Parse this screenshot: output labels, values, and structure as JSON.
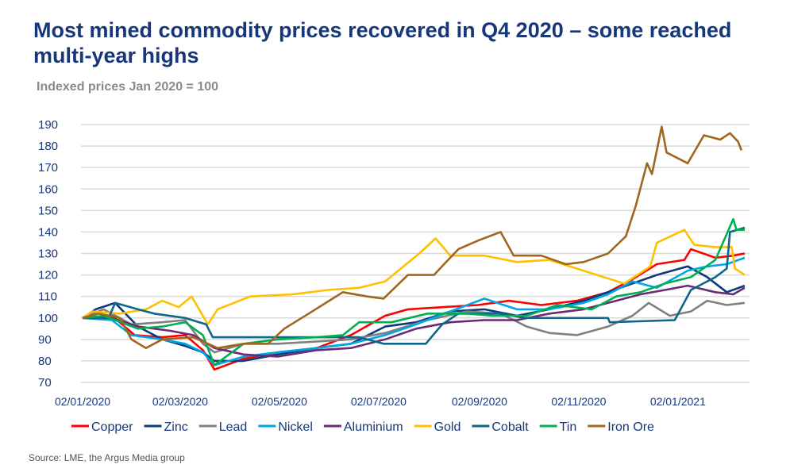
{
  "title": "Most mined commodity prices recovered in Q4 2020 – some reached multi-year highs",
  "subtitle": "Indexed prices Jan 2020 = 100",
  "source": "Source: LME, the Argus Media group",
  "chart_data": {
    "type": "line",
    "title": "Most mined commodity prices recovered in Q4 2020 – some reached multi-year highs",
    "ylabel": "Indexed prices Jan 2020 = 100",
    "ylim": [
      70,
      190
    ],
    "yticks": [
      70,
      80,
      90,
      100,
      110,
      120,
      130,
      140,
      150,
      160,
      170,
      180,
      190
    ],
    "xlim": [
      "2020-01-02",
      "2021-02-15"
    ],
    "xticks": [
      {
        "date": "2020-01-02",
        "label": "02/01/2020"
      },
      {
        "date": "2020-03-02",
        "label": "02/03/2020"
      },
      {
        "date": "2020-05-02",
        "label": "02/05/2020"
      },
      {
        "date": "2020-07-02",
        "label": "02/07/2020"
      },
      {
        "date": "2020-09-02",
        "label": "02/09/2020"
      },
      {
        "date": "2020-11-02",
        "label": "02/11/2020"
      },
      {
        "date": "2021-01-02",
        "label": "02/01/2021"
      }
    ],
    "grid": true,
    "legend": "bottom",
    "series": [
      {
        "name": "Copper",
        "color": "#ff0000",
        "points": [
          [
            "2020-01-02",
            100
          ],
          [
            "2020-01-20",
            101
          ],
          [
            "2020-02-03",
            92
          ],
          [
            "2020-02-20",
            91
          ],
          [
            "2020-03-05",
            92
          ],
          [
            "2020-03-16",
            85
          ],
          [
            "2020-03-23",
            76
          ],
          [
            "2020-04-10",
            81
          ],
          [
            "2020-05-01",
            84
          ],
          [
            "2020-05-25",
            86
          ],
          [
            "2020-06-15",
            92
          ],
          [
            "2020-07-06",
            101
          ],
          [
            "2020-07-20",
            104
          ],
          [
            "2020-08-10",
            105
          ],
          [
            "2020-09-01",
            106
          ],
          [
            "2020-09-20",
            108
          ],
          [
            "2020-10-10",
            106
          ],
          [
            "2020-11-01",
            108
          ],
          [
            "2020-11-20",
            112
          ],
          [
            "2020-12-05",
            118
          ],
          [
            "2020-12-20",
            125
          ],
          [
            "2021-01-06",
            127
          ],
          [
            "2021-01-10",
            132
          ],
          [
            "2021-01-25",
            128
          ],
          [
            "2021-02-05",
            129
          ],
          [
            "2021-02-12",
            130
          ]
        ]
      },
      {
        "name": "Zinc",
        "color": "#0d3a7c",
        "points": [
          [
            "2020-01-02",
            100
          ],
          [
            "2020-01-10",
            104
          ],
          [
            "2020-01-22",
            107
          ],
          [
            "2020-02-05",
            96
          ],
          [
            "2020-02-20",
            90
          ],
          [
            "2020-03-05",
            87
          ],
          [
            "2020-03-16",
            84
          ],
          [
            "2020-03-23",
            80
          ],
          [
            "2020-04-10",
            80
          ],
          [
            "2020-05-01",
            83
          ],
          [
            "2020-05-25",
            86
          ],
          [
            "2020-06-15",
            88
          ],
          [
            "2020-07-06",
            96
          ],
          [
            "2020-07-25",
            98
          ],
          [
            "2020-08-15",
            103
          ],
          [
            "2020-09-05",
            104
          ],
          [
            "2020-09-25",
            101
          ],
          [
            "2020-10-15",
            104
          ],
          [
            "2020-11-05",
            108
          ],
          [
            "2020-11-20",
            112
          ],
          [
            "2020-12-05",
            116
          ],
          [
            "2020-12-20",
            120
          ],
          [
            "2021-01-08",
            124
          ],
          [
            "2021-01-20",
            119
          ],
          [
            "2021-02-01",
            112
          ],
          [
            "2021-02-12",
            115
          ]
        ]
      },
      {
        "name": "Lead",
        "color": "#808080",
        "points": [
          [
            "2020-01-02",
            100
          ],
          [
            "2020-01-15",
            104
          ],
          [
            "2020-02-01",
            97
          ],
          [
            "2020-02-20",
            98
          ],
          [
            "2020-03-05",
            99
          ],
          [
            "2020-03-16",
            88
          ],
          [
            "2020-03-23",
            84
          ],
          [
            "2020-04-10",
            88
          ],
          [
            "2020-05-01",
            88
          ],
          [
            "2020-05-25",
            89
          ],
          [
            "2020-06-15",
            90
          ],
          [
            "2020-07-06",
            93
          ],
          [
            "2020-08-01",
            99
          ],
          [
            "2020-08-25",
            103
          ],
          [
            "2020-09-15",
            102
          ],
          [
            "2020-10-01",
            96
          ],
          [
            "2020-10-15",
            93
          ],
          [
            "2020-11-01",
            92
          ],
          [
            "2020-11-20",
            96
          ],
          [
            "2020-12-05",
            101
          ],
          [
            "2020-12-15",
            107
          ],
          [
            "2020-12-28",
            101
          ],
          [
            "2021-01-10",
            103
          ],
          [
            "2021-01-20",
            108
          ],
          [
            "2021-02-01",
            106
          ],
          [
            "2021-02-12",
            107
          ]
        ]
      },
      {
        "name": "Nickel",
        "color": "#00a6e6",
        "points": [
          [
            "2020-01-02",
            100
          ],
          [
            "2020-01-20",
            99
          ],
          [
            "2020-02-01",
            92
          ],
          [
            "2020-02-20",
            90
          ],
          [
            "2020-03-05",
            88
          ],
          [
            "2020-03-16",
            84
          ],
          [
            "2020-03-23",
            78
          ],
          [
            "2020-04-10",
            82
          ],
          [
            "2020-05-01",
            84
          ],
          [
            "2020-05-25",
            86
          ],
          [
            "2020-06-15",
            88
          ],
          [
            "2020-07-06",
            92
          ],
          [
            "2020-07-25",
            97
          ],
          [
            "2020-08-15",
            103
          ],
          [
            "2020-09-05",
            109
          ],
          [
            "2020-09-25",
            104
          ],
          [
            "2020-10-15",
            104
          ],
          [
            "2020-11-05",
            107
          ],
          [
            "2020-11-20",
            111
          ],
          [
            "2020-12-05",
            117
          ],
          [
            "2020-12-20",
            114
          ],
          [
            "2021-01-08",
            122
          ],
          [
            "2021-01-20",
            124
          ],
          [
            "2021-02-01",
            125
          ],
          [
            "2021-02-12",
            128
          ]
        ]
      },
      {
        "name": "Aluminium",
        "color": "#6b2a74",
        "points": [
          [
            "2020-01-02",
            100
          ],
          [
            "2020-01-20",
            100
          ],
          [
            "2020-02-05",
            96
          ],
          [
            "2020-02-25",
            94
          ],
          [
            "2020-03-10",
            92
          ],
          [
            "2020-03-23",
            86
          ],
          [
            "2020-04-10",
            83
          ],
          [
            "2020-05-01",
            82
          ],
          [
            "2020-05-25",
            85
          ],
          [
            "2020-06-15",
            86
          ],
          [
            "2020-07-06",
            90
          ],
          [
            "2020-07-25",
            95
          ],
          [
            "2020-08-15",
            98
          ],
          [
            "2020-09-05",
            99
          ],
          [
            "2020-09-25",
            99
          ],
          [
            "2020-10-15",
            102
          ],
          [
            "2020-11-05",
            104
          ],
          [
            "2020-11-25",
            108
          ],
          [
            "2020-12-10",
            111
          ],
          [
            "2020-12-25",
            113
          ],
          [
            "2021-01-08",
            115
          ],
          [
            "2021-01-25",
            112
          ],
          [
            "2021-02-05",
            111
          ],
          [
            "2021-02-12",
            114
          ]
        ]
      },
      {
        "name": "Gold",
        "color": "#ffc000",
        "points": [
          [
            "2020-01-02",
            100
          ],
          [
            "2020-01-08",
            103
          ],
          [
            "2020-01-25",
            102
          ],
          [
            "2020-02-10",
            104
          ],
          [
            "2020-02-20",
            108
          ],
          [
            "2020-03-01",
            105
          ],
          [
            "2020-03-09",
            110
          ],
          [
            "2020-03-19",
            97
          ],
          [
            "2020-03-25",
            104
          ],
          [
            "2020-04-14",
            110
          ],
          [
            "2020-05-10",
            111
          ],
          [
            "2020-06-01",
            113
          ],
          [
            "2020-06-20",
            114
          ],
          [
            "2020-07-06",
            117
          ],
          [
            "2020-07-27",
            130
          ],
          [
            "2020-08-06",
            137
          ],
          [
            "2020-08-15",
            129
          ],
          [
            "2020-09-05",
            129
          ],
          [
            "2020-09-25",
            126
          ],
          [
            "2020-10-15",
            127
          ],
          [
            "2020-11-09",
            121
          ],
          [
            "2020-11-30",
            116
          ],
          [
            "2020-12-16",
            124
          ],
          [
            "2020-12-20",
            135
          ],
          [
            "2021-01-06",
            141
          ],
          [
            "2021-01-12",
            134
          ],
          [
            "2021-01-25",
            133
          ],
          [
            "2021-02-04",
            133
          ],
          [
            "2021-02-06",
            123
          ],
          [
            "2021-02-12",
            120
          ]
        ]
      },
      {
        "name": "Cobalt",
        "color": "#0e6689",
        "points": [
          [
            "2020-01-02",
            100
          ],
          [
            "2020-01-18",
            100
          ],
          [
            "2020-01-22",
            107
          ],
          [
            "2020-02-05",
            104
          ],
          [
            "2020-02-15",
            102
          ],
          [
            "2020-03-05",
            100
          ],
          [
            "2020-03-18",
            97
          ],
          [
            "2020-03-22",
            91
          ],
          [
            "2020-04-15",
            91
          ],
          [
            "2020-05-20",
            91
          ],
          [
            "2020-06-20",
            91
          ],
          [
            "2020-07-05",
            88
          ],
          [
            "2020-07-31",
            88
          ],
          [
            "2020-08-10",
            97
          ],
          [
            "2020-08-20",
            102
          ],
          [
            "2020-09-15",
            102
          ],
          [
            "2020-09-30",
            100
          ],
          [
            "2020-10-25",
            100
          ],
          [
            "2020-11-20",
            100
          ],
          [
            "2020-11-21",
            98
          ],
          [
            "2020-12-31",
            99
          ],
          [
            "2021-01-10",
            113
          ],
          [
            "2021-01-25",
            119
          ],
          [
            "2021-02-01",
            123
          ],
          [
            "2021-02-03",
            140
          ],
          [
            "2021-02-12",
            142
          ]
        ]
      },
      {
        "name": "Tin",
        "color": "#00b050",
        "points": [
          [
            "2020-01-02",
            100
          ],
          [
            "2020-01-15",
            101
          ],
          [
            "2020-02-05",
            95
          ],
          [
            "2020-02-20",
            96
          ],
          [
            "2020-03-05",
            98
          ],
          [
            "2020-03-16",
            92
          ],
          [
            "2020-03-23",
            78
          ],
          [
            "2020-04-10",
            88
          ],
          [
            "2020-05-01",
            90
          ],
          [
            "2020-05-25",
            91
          ],
          [
            "2020-06-10",
            92
          ],
          [
            "2020-06-20",
            98
          ],
          [
            "2020-07-10",
            98
          ],
          [
            "2020-08-01",
            102
          ],
          [
            "2020-08-25",
            102
          ],
          [
            "2020-09-10",
            101
          ],
          [
            "2020-10-01",
            101
          ],
          [
            "2020-10-20",
            106
          ],
          [
            "2020-11-10",
            104
          ],
          [
            "2020-11-25",
            110
          ],
          [
            "2020-12-10",
            112
          ],
          [
            "2020-12-25",
            116
          ],
          [
            "2021-01-10",
            119
          ],
          [
            "2021-01-25",
            127
          ],
          [
            "2021-02-05",
            146
          ],
          [
            "2021-02-07",
            141
          ],
          [
            "2021-02-12",
            141
          ]
        ]
      },
      {
        "name": "Iron Ore",
        "color": "#a0661e",
        "points": [
          [
            "2020-01-02",
            100
          ],
          [
            "2020-01-12",
            102
          ],
          [
            "2020-01-25",
            100
          ],
          [
            "2020-02-01",
            90
          ],
          [
            "2020-02-10",
            86
          ],
          [
            "2020-02-20",
            90
          ],
          [
            "2020-03-10",
            91
          ],
          [
            "2020-03-25",
            86
          ],
          [
            "2020-04-10",
            88
          ],
          [
            "2020-04-25",
            88
          ],
          [
            "2020-05-05",
            95
          ],
          [
            "2020-05-20",
            102
          ],
          [
            "2020-06-10",
            112
          ],
          [
            "2020-06-25",
            110
          ],
          [
            "2020-07-05",
            109
          ],
          [
            "2020-07-20",
            120
          ],
          [
            "2020-08-05",
            120
          ],
          [
            "2020-08-15",
            128
          ],
          [
            "2020-08-20",
            132
          ],
          [
            "2020-09-01",
            136
          ],
          [
            "2020-09-15",
            140
          ],
          [
            "2020-09-23",
            129
          ],
          [
            "2020-10-10",
            129
          ],
          [
            "2020-10-25",
            125
          ],
          [
            "2020-11-05",
            126
          ],
          [
            "2020-11-20",
            130
          ],
          [
            "2020-12-01",
            138
          ],
          [
            "2020-12-07",
            152
          ],
          [
            "2020-12-14",
            172
          ],
          [
            "2020-12-17",
            167
          ],
          [
            "2020-12-23",
            189
          ],
          [
            "2020-12-26",
            177
          ],
          [
            "2021-01-08",
            172
          ],
          [
            "2021-01-18",
            185
          ],
          [
            "2021-01-28",
            183
          ],
          [
            "2021-02-03",
            186
          ],
          [
            "2021-02-08",
            182
          ],
          [
            "2021-02-10",
            178
          ]
        ]
      }
    ]
  }
}
